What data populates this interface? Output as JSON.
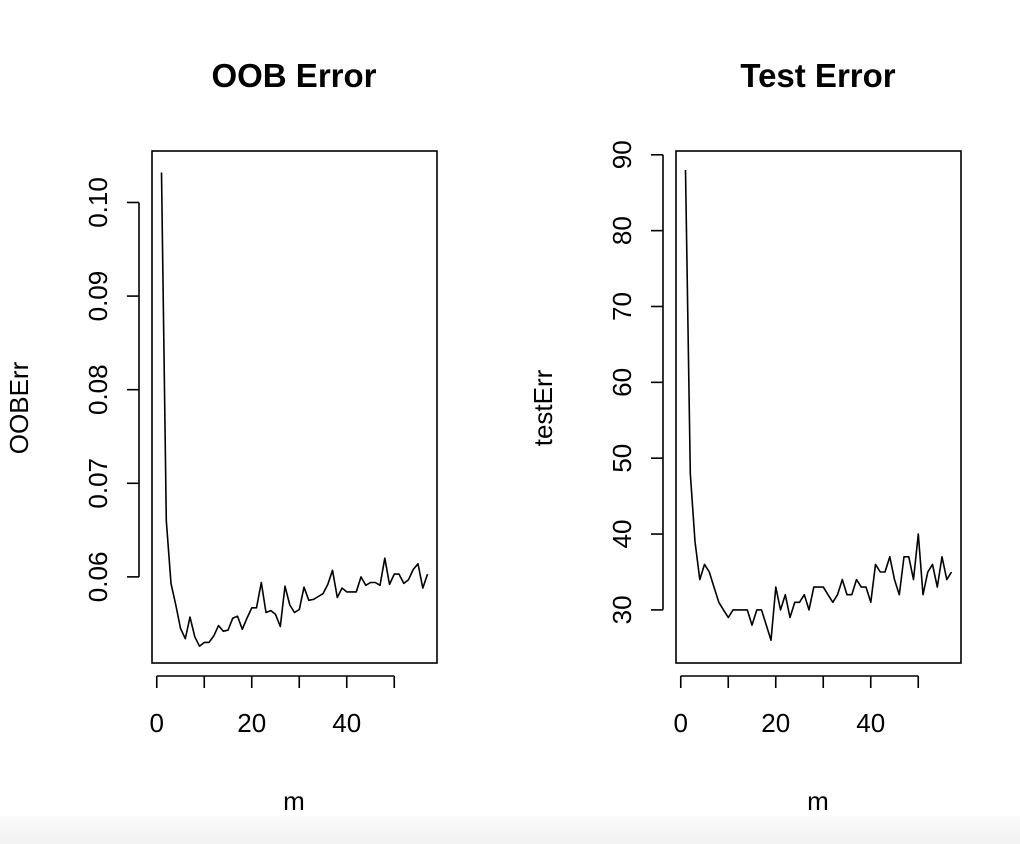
{
  "colors": {
    "background": "#ffffff",
    "line": "#000000"
  },
  "chart_data": [
    {
      "type": "line",
      "title": "OOB Error",
      "xlabel": "m",
      "ylabel": "OOBErr",
      "xlim": [
        -1,
        59
      ],
      "ylim": [
        0.0508,
        0.1055
      ],
      "xticks": [
        0,
        20,
        40
      ],
      "xtick_labels": [
        "0",
        "20",
        "40"
      ],
      "xtick_marks": [
        0,
        10,
        20,
        30,
        40,
        50
      ],
      "yticks": [
        0.06,
        0.07,
        0.08,
        0.09,
        0.1
      ],
      "ytick_labels": [
        "0.06",
        "0.07",
        "0.08",
        "0.09",
        "0.10"
      ],
      "grid": false,
      "x": [
        1,
        2,
        3,
        4,
        5,
        6,
        7,
        8,
        9,
        10,
        11,
        12,
        13,
        14,
        15,
        16,
        17,
        18,
        19,
        20,
        21,
        22,
        23,
        24,
        25,
        26,
        27,
        28,
        29,
        30,
        31,
        32,
        33,
        34,
        35,
        36,
        37,
        38,
        39,
        40,
        41,
        42,
        43,
        44,
        45,
        46,
        47,
        48,
        49,
        50,
        51,
        52,
        53,
        54,
        55,
        56,
        57
      ],
      "y": [
        0.1032,
        0.066,
        0.0593,
        0.057,
        0.0545,
        0.0534,
        0.0557,
        0.0536,
        0.0526,
        0.053,
        0.053,
        0.0537,
        0.0548,
        0.0542,
        0.0543,
        0.0556,
        0.0558,
        0.0544,
        0.0556,
        0.0567,
        0.0567,
        0.0594,
        0.0562,
        0.0564,
        0.056,
        0.0547,
        0.059,
        0.057,
        0.0562,
        0.0565,
        0.0589,
        0.0575,
        0.0576,
        0.0579,
        0.0582,
        0.0592,
        0.0607,
        0.0578,
        0.0588,
        0.0584,
        0.0584,
        0.0584,
        0.06,
        0.0591,
        0.0594,
        0.0594,
        0.0591,
        0.062,
        0.0592,
        0.0603,
        0.0603,
        0.0593,
        0.0597,
        0.0608,
        0.0614,
        0.0588,
        0.0603
      ]
    },
    {
      "type": "line",
      "title": "Test Error",
      "xlabel": "m",
      "ylabel": "testErr",
      "xlim": [
        -1,
        59
      ],
      "ylim": [
        23,
        90.5
      ],
      "xticks": [
        0,
        20,
        40
      ],
      "xtick_labels": [
        "0",
        "20",
        "40"
      ],
      "xtick_marks": [
        0,
        10,
        20,
        30,
        40,
        50
      ],
      "yticks": [
        30,
        40,
        50,
        60,
        70,
        80,
        90
      ],
      "ytick_labels": [
        "30",
        "40",
        "50",
        "60",
        "70",
        "80",
        "90"
      ],
      "grid": false,
      "x": [
        1,
        2,
        3,
        4,
        5,
        6,
        7,
        8,
        9,
        10,
        11,
        12,
        13,
        14,
        15,
        16,
        17,
        18,
        19,
        20,
        21,
        22,
        23,
        24,
        25,
        26,
        27,
        28,
        29,
        30,
        31,
        32,
        33,
        34,
        35,
        36,
        37,
        38,
        39,
        40,
        41,
        42,
        43,
        44,
        45,
        46,
        47,
        48,
        49,
        50,
        51,
        52,
        53,
        54,
        55,
        56,
        57
      ],
      "y": [
        88,
        48,
        39,
        34,
        36,
        35,
        33,
        31,
        30,
        29,
        30,
        30,
        30,
        30,
        28,
        30,
        30,
        28,
        26,
        33,
        30,
        32,
        29,
        31,
        31,
        32,
        30,
        33,
        33,
        33,
        32,
        31,
        32,
        34,
        32,
        32,
        34,
        33,
        33,
        31,
        36,
        35,
        35,
        37,
        34,
        32,
        37,
        37,
        34,
        40,
        32,
        35,
        36,
        33,
        37,
        34,
        35
      ]
    }
  ]
}
